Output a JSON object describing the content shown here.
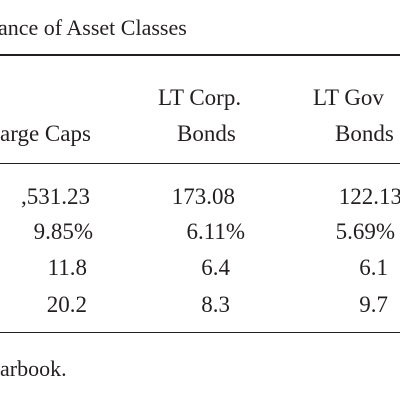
{
  "title": "ance of Asset Classes",
  "table": {
    "columns": [
      {
        "label": [
          "arge Caps"
        ]
      },
      {
        "label": [
          "LT Corp.",
          "Bonds"
        ]
      },
      {
        "label": [
          "LT Gov",
          "Bonds"
        ]
      }
    ],
    "rows": [
      [
        ",531.23",
        "173.08",
        "122.13"
      ],
      [
        "9.85%",
        "6.11%",
        "5.69%"
      ],
      [
        "11.8",
        "6.4",
        "6.1"
      ],
      [
        "20.2",
        "8.3",
        "9.7"
      ]
    ]
  },
  "footnote": "arbook."
}
